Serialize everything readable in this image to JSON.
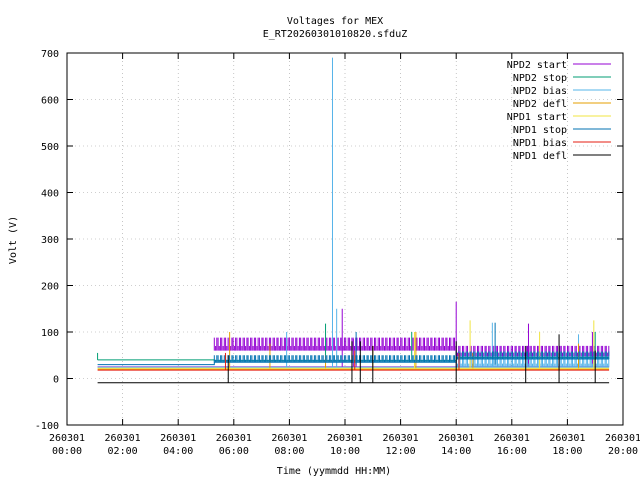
{
  "chart_data": {
    "type": "line",
    "title": "Voltages for MEX",
    "subtitle": "E_RT20260301010820.sfduZ",
    "xlabel": "Time (yymmdd HH:MM)",
    "ylabel": "Volt (V)",
    "x_unit": "hours",
    "xlim": [
      0,
      20
    ],
    "ylim": [
      -100,
      700
    ],
    "yticks": [
      -100,
      0,
      100,
      200,
      300,
      400,
      500,
      600,
      700
    ],
    "xticks": [
      {
        "x": 0,
        "date": "260301",
        "time": "00:00"
      },
      {
        "x": 2,
        "date": "260301",
        "time": "02:00"
      },
      {
        "x": 4,
        "date": "260301",
        "time": "04:00"
      },
      {
        "x": 6,
        "date": "260301",
        "time": "06:00"
      },
      {
        "x": 8,
        "date": "260301",
        "time": "08:00"
      },
      {
        "x": 10,
        "date": "260301",
        "time": "10:00"
      },
      {
        "x": 12,
        "date": "260301",
        "time": "12:00"
      },
      {
        "x": 14,
        "date": "260301",
        "time": "14:00"
      },
      {
        "x": 16,
        "date": "260301",
        "time": "16:00"
      },
      {
        "x": 18,
        "date": "260301",
        "time": "18:00"
      },
      {
        "x": 20,
        "date": "260301",
        "time": "20:00"
      }
    ],
    "grid": true,
    "legend_position": "top-right",
    "series": [
      {
        "name": "NPD2 start",
        "color": "#9400d3",
        "base": [
          [
            1.1,
            25
          ],
          [
            5.3,
            25
          ],
          [
            5.3,
            25
          ],
          [
            19.5,
            25
          ]
        ],
        "band": {
          "x0": 5.3,
          "x1": 19.5,
          "segments": [
            [
              5.3,
              14.0,
              60,
              88
            ],
            [
              14.0,
              19.5,
              48,
              70
            ]
          ]
        },
        "spikes": [
          [
            9.9,
            150
          ],
          [
            10.3,
            85
          ],
          [
            10.4,
            85
          ],
          [
            14.0,
            165
          ],
          [
            16.6,
            118
          ],
          [
            18.9,
            100
          ]
        ]
      },
      {
        "name": "NPD2 stop",
        "color": "#009e73",
        "base": [
          [
            1.1,
            40
          ],
          [
            5.3,
            40
          ],
          [
            5.3,
            38
          ],
          [
            14.0,
            38
          ],
          [
            14.0,
            45
          ],
          [
            19.5,
            45
          ]
        ],
        "spikes": [
          [
            1.1,
            55
          ],
          [
            9.3,
            118
          ],
          [
            12.4,
            100
          ],
          [
            19.0,
            100
          ]
        ]
      },
      {
        "name": "NPD2 bias",
        "color": "#56b4e9",
        "base": [
          [
            1.1,
            24
          ],
          [
            19.5,
            24
          ]
        ],
        "band": {
          "x0": 14.0,
          "x1": 19.5,
          "segments": [
            [
              14.0,
              19.5,
              25,
              45
            ]
          ]
        },
        "spikes": [
          [
            7.9,
            100
          ],
          [
            9.55,
            690
          ],
          [
            9.7,
            150
          ],
          [
            15.3,
            120
          ],
          [
            18.4,
            95
          ]
        ]
      },
      {
        "name": "NPD2 defl",
        "color": "#e69f00",
        "base": [
          [
            1.1,
            20
          ],
          [
            19.5,
            20
          ]
        ],
        "spikes": [
          [
            5.85,
            100
          ],
          [
            7.3,
            75
          ],
          [
            9.3,
            50
          ],
          [
            11.0,
            70
          ],
          [
            12.55,
            100
          ],
          [
            14.6,
            55
          ],
          [
            18.4,
            75
          ]
        ]
      },
      {
        "name": "NPD1 start",
        "color": "#f0e442",
        "base": [
          [
            1.1,
            22
          ],
          [
            19.5,
            22
          ]
        ],
        "spikes": [
          [
            12.5,
            100
          ],
          [
            14.5,
            125
          ],
          [
            17.0,
            100
          ],
          [
            18.95,
            125
          ]
        ]
      },
      {
        "name": "NPD1 stop",
        "color": "#0072b2",
        "base": [
          [
            1.1,
            30
          ],
          [
            5.3,
            30
          ],
          [
            5.3,
            35
          ],
          [
            14.0,
            35
          ],
          [
            14.0,
            42
          ],
          [
            19.5,
            42
          ]
        ],
        "band": {
          "x0": 5.3,
          "x1": 19.5,
          "segments": [
            [
              5.3,
              14.0,
              35,
              50
            ],
            [
              14.0,
              19.5,
              42,
              58
            ]
          ]
        },
        "spikes": [
          [
            10.4,
            100
          ],
          [
            15.4,
            120
          ]
        ]
      },
      {
        "name": "NPD1 bias",
        "color": "#e51e10",
        "base": [
          [
            1.1,
            18
          ],
          [
            19.5,
            18
          ]
        ],
        "spikes": [
          [
            5.7,
            55
          ],
          [
            10.35,
            60
          ],
          [
            14.1,
            55
          ],
          [
            17.7,
            55
          ]
        ]
      },
      {
        "name": "NPD1 defl",
        "color": "#000000",
        "base": [
          [
            1.1,
            -9
          ],
          [
            19.5,
            -9
          ]
        ],
        "spikes": [
          [
            5.8,
            -9,
            50
          ],
          [
            10.25,
            -9,
            80
          ],
          [
            10.55,
            -9,
            80
          ],
          [
            11.0,
            -9,
            70
          ],
          [
            14.0,
            -9,
            80
          ],
          [
            16.5,
            -9,
            70
          ],
          [
            17.7,
            -9,
            95
          ],
          [
            19.0,
            -9,
            60
          ]
        ]
      }
    ]
  }
}
